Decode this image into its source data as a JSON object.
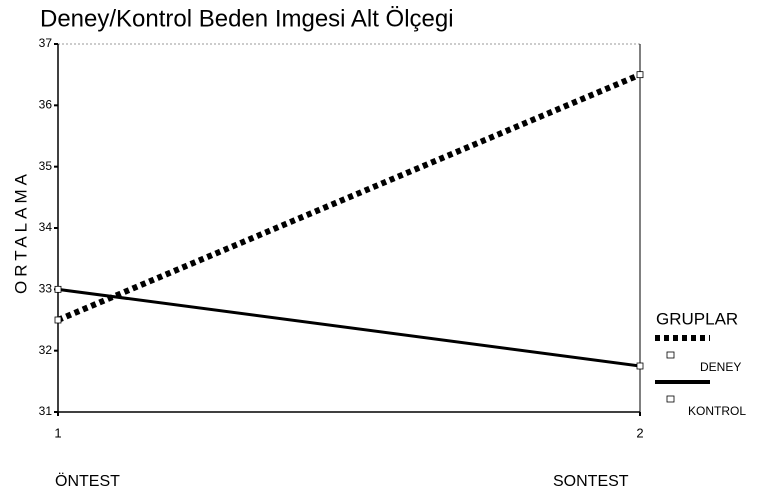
{
  "chart_data": {
    "type": "line",
    "title": "Deney/Kontrol Beden Imgesi Alt Ölçegi",
    "y_label": "ORTALAMA",
    "x": [
      1,
      2
    ],
    "xlim": [
      1,
      2
    ],
    "xticks": [
      1,
      2
    ],
    "x_annotations": [
      "ÖNTEST",
      "SONTEST"
    ],
    "ylim": [
      31,
      37
    ],
    "yticks": [
      31,
      32,
      33,
      34,
      35,
      36,
      37
    ],
    "legend_title": "GRUPLAR",
    "legend_position": "right",
    "series": [
      {
        "name": "DENEY",
        "color": "#000000",
        "style": "dotted",
        "values": [
          32.5,
          36.5
        ]
      },
      {
        "name": "KONTROL",
        "color": "#000000",
        "style": "solid",
        "values": [
          33.0,
          31.75
        ]
      }
    ]
  }
}
